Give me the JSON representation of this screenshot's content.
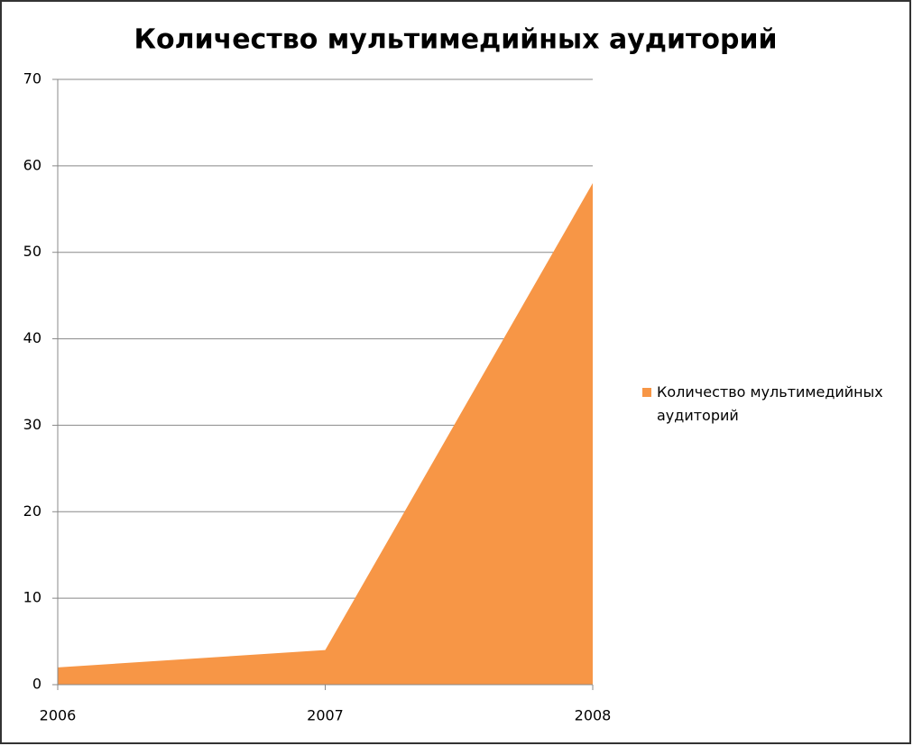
{
  "chart_data": {
    "type": "area",
    "title": "Количество мультимедийных аудиторий",
    "categories": [
      "2006",
      "2007",
      "2008"
    ],
    "series": [
      {
        "name": "Количество мультимедийных аудиторий",
        "color": "#f79646",
        "values": [
          2,
          4,
          58
        ]
      }
    ],
    "ylim": [
      0,
      70
    ],
    "yticks": [
      0,
      10,
      20,
      30,
      40,
      50,
      60,
      70
    ],
    "grid": true,
    "legend": "right"
  }
}
